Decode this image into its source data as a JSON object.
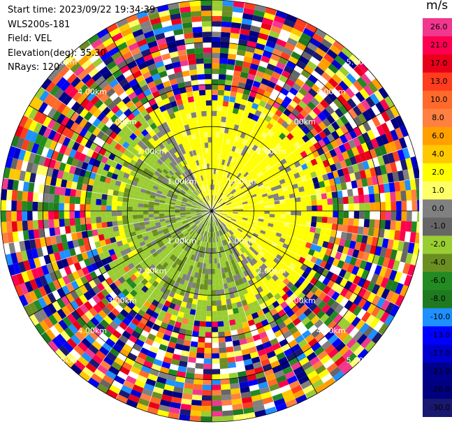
{
  "info": {
    "start_time": "Start time: 2023/09/22 19:34:39",
    "instrument": "WLS200s-181",
    "field": "Field: VEL",
    "elevation": "Elevation(deg): 35.30",
    "nrays": "NRays: 120"
  },
  "colorbar": {
    "unit": "m/s",
    "levels": [
      {
        "label": "26.0",
        "color": "#f2378f"
      },
      {
        "label": "21.0",
        "color": "#ff0050"
      },
      {
        "label": "17.0",
        "color": "#e8001a"
      },
      {
        "label": "13.0",
        "color": "#ff3c1e"
      },
      {
        "label": "10.0",
        "color": "#ff6a2a"
      },
      {
        "label": "8.0",
        "color": "#ff8040"
      },
      {
        "label": "6.0",
        "color": "#ffa000"
      },
      {
        "label": "4.0",
        "color": "#ffc800"
      },
      {
        "label": "2.0",
        "color": "#ffff00"
      },
      {
        "label": "1.0",
        "color": "#ffff66"
      },
      {
        "label": "0.0",
        "color": "#808080"
      },
      {
        "label": "-1.0",
        "color": "#666666"
      },
      {
        "label": "-2.0",
        "color": "#9acd32"
      },
      {
        "label": "-4.0",
        "color": "#6b8e23"
      },
      {
        "label": "-6.0",
        "color": "#228b22"
      },
      {
        "label": "-8.0",
        "color": "#1f7a1f"
      },
      {
        "label": "-10.0",
        "color": "#1e90ff"
      },
      {
        "label": "-13.0",
        "color": "#0000ff"
      },
      {
        "label": "-17.0",
        "color": "#0000cd"
      },
      {
        "label": "-21.0",
        "color": "#00008b"
      },
      {
        "label": "-26.0",
        "color": "#000080"
      },
      {
        "label": "-30.0",
        "color": "#191970"
      }
    ]
  },
  "chart_data": {
    "type": "heatmap",
    "projection": "polar PPI",
    "range_rings": [
      {
        "label": "1.00km",
        "range_km": 1.0
      },
      {
        "label": "2.00km",
        "range_km": 2.0
      },
      {
        "label": "3.00km",
        "range_km": 3.0
      },
      {
        "label": "4.00km",
        "range_km": 4.0
      },
      {
        "label": "5.00km",
        "range_km": 5.0
      }
    ],
    "max_range_km": 5.0,
    "n_rays": 120,
    "grid": true
  }
}
